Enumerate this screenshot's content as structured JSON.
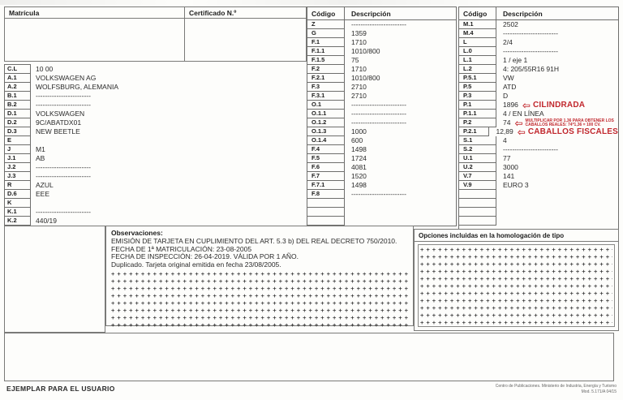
{
  "matricula": {
    "label": "Matrícula",
    "value": ""
  },
  "certificado": {
    "label": "Certificado N.º",
    "value": ""
  },
  "left_table": {
    "rows": [
      {
        "code": "C.L",
        "value": "10 00"
      },
      {
        "code": "A.1",
        "value": "VOLKSWAGEN AG"
      },
      {
        "code": "A.2",
        "value": "WOLFSBURG, ALEMANIA"
      },
      {
        "code": "B.1",
        "value": "------------------------"
      },
      {
        "code": "B.2",
        "value": "------------------------"
      },
      {
        "code": "D.1",
        "value": "VOLKSWAGEN"
      },
      {
        "code": "D.2",
        "value": "9C/ABATDX01"
      },
      {
        "code": "D.3",
        "value": "NEW BEETLE"
      },
      {
        "code": "E",
        "value": ""
      },
      {
        "code": "J",
        "value": "M1"
      },
      {
        "code": "J.1",
        "value": "AB"
      },
      {
        "code": "J.2",
        "value": "------------------------"
      },
      {
        "code": "J.3",
        "value": "------------------------"
      },
      {
        "code": "R",
        "value": "AZUL"
      },
      {
        "code": "D.6",
        "value": "EEE"
      },
      {
        "code": "K",
        "value": ""
      },
      {
        "code": "K.1",
        "value": "------------------------"
      },
      {
        "code": "K.2",
        "value": "440/19"
      }
    ]
  },
  "mid_table": {
    "header": {
      "codigo": "Código",
      "descripcion": "Descripción"
    },
    "rows": [
      {
        "code": "Z",
        "value": "------------------------"
      },
      {
        "code": "G",
        "value": "1359"
      },
      {
        "code": "F.1",
        "value": "1710"
      },
      {
        "code": "F.1.1",
        "value": "1010/800"
      },
      {
        "code": "F.1.5",
        "value": "75"
      },
      {
        "code": "F.2",
        "value": "1710"
      },
      {
        "code": "F.2.1",
        "value": "1010/800"
      },
      {
        "code": "F.3",
        "value": "2710"
      },
      {
        "code": "F.3.1",
        "value": "2710"
      },
      {
        "code": "O.1",
        "value": "------------------------"
      },
      {
        "code": "O.1.1",
        "value": "------------------------"
      },
      {
        "code": "O.1.2",
        "value": "------------------------"
      },
      {
        "code": "O.1.3",
        "value": "1000"
      },
      {
        "code": "O.1.4",
        "value": "600"
      },
      {
        "code": "F.4",
        "value": "1498"
      },
      {
        "code": "F.5",
        "value": "1724"
      },
      {
        "code": "F.6",
        "value": "4081"
      },
      {
        "code": "F.7",
        "value": "1520"
      },
      {
        "code": "F.7.1",
        "value": "1498"
      },
      {
        "code": "F.8",
        "value": "------------------------"
      },
      {
        "code": "",
        "value": ""
      },
      {
        "code": "",
        "value": ""
      },
      {
        "code": "",
        "value": ""
      }
    ]
  },
  "right_table": {
    "header": {
      "codigo": "Código",
      "descripcion": "Descripción"
    },
    "rows": [
      {
        "code": "M.1",
        "value": "2502"
      },
      {
        "code": "M.4",
        "value": "------------------------"
      },
      {
        "code": "L",
        "value": "2/4"
      },
      {
        "code": "L.0",
        "value": "------------------------"
      },
      {
        "code": "L.1",
        "value": "1 / eje 1"
      },
      {
        "code": "L.2",
        "value": "4: 205/55R16 91H"
      },
      {
        "code": "P.5.1",
        "value": "VW"
      },
      {
        "code": "P.5",
        "value": "ATD"
      },
      {
        "code": "P.3",
        "value": "D"
      },
      {
        "code": "P.1",
        "value": "1896",
        "note": {
          "text": "CILINDRADA"
        }
      },
      {
        "code": "P.1.1",
        "value": "4 / EN LÍNEA"
      },
      {
        "code": "P.2",
        "value": "74",
        "note": {
          "lines": [
            "MULTIPLICAR POR 1,36 PARA OBTENER LOS",
            "CABALLOS REALES: 74*1,36 = 100 CV."
          ]
        }
      },
      {
        "code": "P.2.1",
        "value": "12,89",
        "note": {
          "text": "CABALLOS FISCALES"
        }
      },
      {
        "code": "S.1",
        "value": "4"
      },
      {
        "code": "S.2",
        "value": "------------------------"
      },
      {
        "code": "U.1",
        "value": "77"
      },
      {
        "code": "U.2",
        "value": "3000"
      },
      {
        "code": "V.7",
        "value": "141"
      },
      {
        "code": "V.9",
        "value": "EURO 3"
      },
      {
        "code": "",
        "value": ""
      },
      {
        "code": "",
        "value": ""
      },
      {
        "code": "",
        "value": ""
      },
      {
        "code": "",
        "value": ""
      }
    ]
  },
  "observaciones": {
    "title": "Observaciones:",
    "lines": [
      "EMISIÓN DE TARJETA EN CUPLIMIENTO DEL ART. 5.3 b) DEL REAL DECRETO 750/2010.",
      "FECHA DE 1ª MATRICULACIÓN: 23-08-2005",
      "FECHA DE INSPECCIÓN: 26-04-2019. VÁLIDA POR 1 AÑO.",
      "Duplicado. Tarjeta original emitida en fecha 23/08/2005."
    ],
    "filler_char": "+",
    "filler_rows": 8
  },
  "opciones": {
    "title": "Opciones incluidas en la homologación de tipo",
    "filler_char": "+",
    "filler_rows": 11
  },
  "page": {
    "footer_left": "EJEMPLAR PARA EL USUARIO",
    "fineprint_line1": "Centro de Publicaciones. Ministerio de Industria, Energía y Turismo",
    "fineprint_line2": "Mod. 5.171/A      04/15"
  },
  "colors": {
    "annotation_red": "#c1272d",
    "line_gray": "#6e6e6c"
  }
}
